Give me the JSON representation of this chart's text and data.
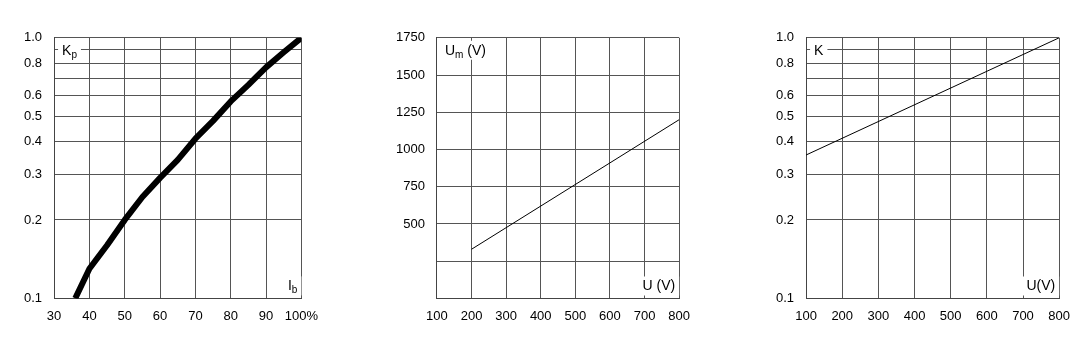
{
  "chart_data": [
    {
      "type": "line",
      "xlabel": "I$_{b}$",
      "ylabel": "K$_{p}$",
      "log": "y",
      "grid": true,
      "legend": false,
      "marker": "none",
      "line_style": "solid",
      "xlim": [
        30,
        100
      ],
      "xticks": [
        30,
        40,
        50,
        60,
        70,
        80,
        90,
        {
          "value": 100,
          "label": "100%"
        }
      ],
      "ylim": [
        0.1,
        1
      ],
      "yticks": [
        0.1,
        0.2,
        0.3,
        0.4,
        0.5,
        0.6,
        {
          "value": 0.7,
          "label": null
        },
        0.8,
        {
          "value": 0.9,
          "label": null
        },
        {
          "value": 1,
          "label": "1.0"
        }
      ],
      "series": [
        {
          "color": "#000000",
          "x": [
            36,
            40,
            45,
            50,
            55,
            60,
            65,
            70,
            75,
            80,
            85,
            90,
            95,
            100
          ],
          "values": [
            0.1,
            0.13,
            0.16,
            0.2,
            0.245,
            0.29,
            0.34,
            0.41,
            0.48,
            0.57,
            0.66,
            0.77,
            0.88,
            1.0
          ]
        }
      ]
    },
    {
      "type": "line",
      "xlabel": "U (V)",
      "ylabel": "U$_{m}$ (V)",
      "grid": true,
      "legend": false,
      "marker": "none",
      "line_style": "solid",
      "xlim": [
        100,
        800
      ],
      "xticks": [
        100,
        200,
        300,
        400,
        500,
        600,
        700,
        800
      ],
      "ylim": [
        0,
        1750
      ],
      "yticks": [
        {
          "value": 250,
          "label": null
        },
        500,
        750,
        1000,
        1250,
        1500,
        1750
      ],
      "series": [
        {
          "color": "#000000",
          "x": [
            200,
            800
          ],
          "values": [
            330,
            1200
          ]
        }
      ]
    },
    {
      "type": "line",
      "xlabel": "U(V)",
      "ylabel": "K",
      "log": "y",
      "grid": true,
      "legend": false,
      "marker": "none",
      "line_style": "solid",
      "xlim": [
        100,
        800
      ],
      "xticks": [
        100,
        200,
        300,
        400,
        500,
        600,
        700,
        800
      ],
      "ylim": [
        0.1,
        1
      ],
      "yticks": [
        0.1,
        0.2,
        0.3,
        0.4,
        0.5,
        0.6,
        {
          "value": 0.7,
          "label": null
        },
        0.8,
        {
          "value": 0.9,
          "label": null
        },
        {
          "value": 1,
          "label": "1.0"
        }
      ],
      "series": [
        {
          "color": "#000000",
          "x": [
            100,
            800
          ],
          "values": [
            0.355,
            1.0
          ]
        }
      ]
    }
  ]
}
